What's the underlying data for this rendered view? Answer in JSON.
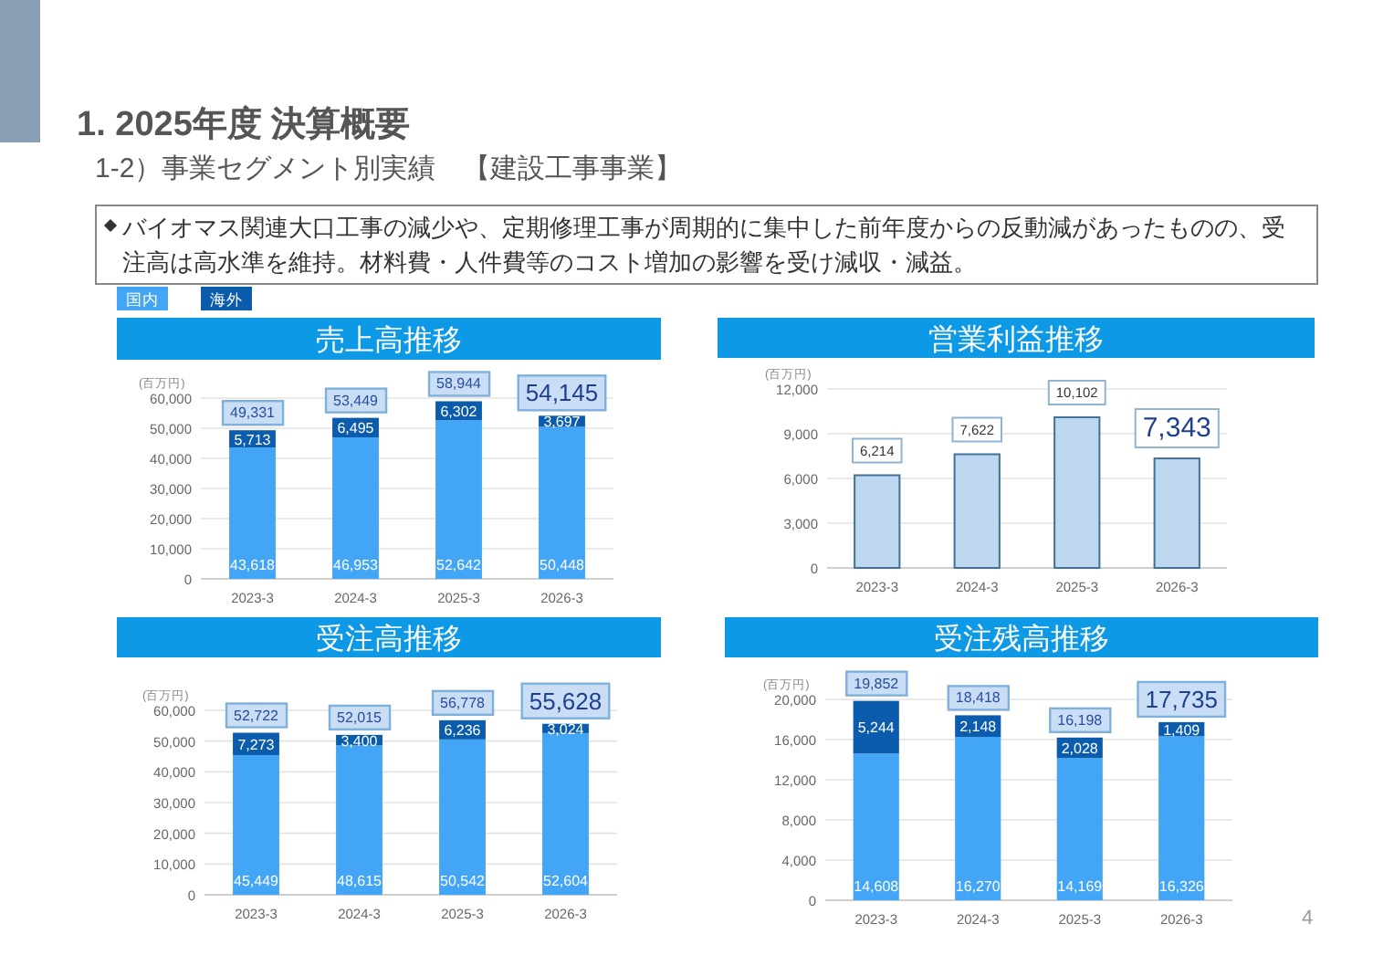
{
  "chart_data": [
    {
      "type": "other",
      "title": "1. 2025年度 決算概要",
      "subtitle": "1-2）事業セグメント別実績　【建設工事事業】",
      "annotations": [
        "バイオマス関連大口工事の減少や、定期修理工事が周期的に集中した前年度からの反動減があったものの、受注高は高水準を維持。材料費・人件費等のコスト増加の影響を受け減収・減益。",
        "4"
      ]
    },
    {
      "type": "bar",
      "title": "売上高推移",
      "ylabel": "(百万円)",
      "categories": [
        "2023-3",
        "2024-3",
        "2025-3",
        "2026-3"
      ],
      "stacked": true,
      "legend": "top left",
      "grid": "y",
      "ylim": [
        0,
        60000
      ],
      "yticks": [
        {
          "value": 0,
          "label": "0"
        },
        {
          "value": 10000,
          "label": "10,000"
        },
        {
          "value": 20000,
          "label": "20,000"
        },
        {
          "value": 30000,
          "label": "30,000"
        },
        {
          "value": 40000,
          "label": "40,000"
        },
        {
          "value": 50000,
          "label": "50,000"
        },
        {
          "value": 60000,
          "label": "60,000"
        }
      ],
      "series": [
        {
          "name": "国内",
          "color": "#42a5f5",
          "values": [
            43618,
            46953,
            52642,
            50448
          ],
          "value_labels": [
            "43,618",
            "46,953",
            "52,642",
            "50,448"
          ]
        },
        {
          "name": "海外",
          "color": "#0b5cad",
          "values": [
            5713,
            6495,
            6302,
            3697
          ],
          "value_labels": [
            "5,713",
            "6,495",
            "6,302",
            "3,697"
          ]
        }
      ],
      "totals": [
        "49,331",
        "53,449",
        "58,944",
        "54,145"
      ]
    },
    {
      "type": "bar",
      "title": "営業利益推移",
      "ylabel": "(百万円)",
      "categories": [
        "2023-3",
        "2024-3",
        "2025-3",
        "2026-3"
      ],
      "grid": "y",
      "color": "#bdd7ee",
      "ylim": [
        0,
        12000
      ],
      "yticks": [
        {
          "value": 0,
          "label": "0"
        },
        {
          "value": 3000,
          "label": "3,000"
        },
        {
          "value": 6000,
          "label": "6,000"
        },
        {
          "value": 9000,
          "label": "9,000"
        },
        {
          "value": 12000,
          "label": "12,000"
        }
      ],
      "values": [
        6214,
        7622,
        10102,
        7343
      ],
      "value_labels": [
        "6,214",
        "7,622",
        "10,102",
        "7,343"
      ]
    },
    {
      "type": "bar",
      "title": "受注高推移",
      "ylabel": "(百万円)",
      "categories": [
        "2023-3",
        "2024-3",
        "2025-3",
        "2026-3"
      ],
      "stacked": true,
      "grid": "y",
      "ylim": [
        0,
        60000
      ],
      "yticks": [
        {
          "value": 0,
          "label": "0"
        },
        {
          "value": 10000,
          "label": "10,000"
        },
        {
          "value": 20000,
          "label": "20,000"
        },
        {
          "value": 30000,
          "label": "30,000"
        },
        {
          "value": 40000,
          "label": "40,000"
        },
        {
          "value": 50000,
          "label": "50,000"
        },
        {
          "value": 60000,
          "label": "60,000"
        }
      ],
      "series": [
        {
          "color": "#42a5f5",
          "values": [
            45449,
            48615,
            50542,
            52604
          ],
          "value_labels": [
            "45,449",
            "48,615",
            "50,542",
            "52,604"
          ]
        },
        {
          "color": "#0b5cad",
          "values": [
            7273,
            3400,
            6236,
            3024
          ],
          "value_labels": [
            "7,273",
            "3,400",
            "6,236",
            "3,024"
          ]
        }
      ],
      "totals": [
        "52,722",
        "52,015",
        "56,778",
        "55,628"
      ]
    },
    {
      "type": "bar",
      "title": "受注残高推移",
      "ylabel": "(百万円)",
      "categories": [
        "2023-3",
        "2024-3",
        "2025-3",
        "2026-3"
      ],
      "stacked": true,
      "grid": "y",
      "ylim": [
        0,
        20000
      ],
      "yticks": [
        {
          "value": 0,
          "label": "0"
        },
        {
          "value": 4000,
          "label": "4,000"
        },
        {
          "value": 8000,
          "label": "8,000"
        },
        {
          "value": 12000,
          "label": "12,000"
        },
        {
          "value": 16000,
          "label": "16,000"
        },
        {
          "value": 20000,
          "label": "20,000"
        }
      ],
      "series": [
        {
          "color": "#42a5f5",
          "values": [
            14608,
            16270,
            14169,
            16326
          ],
          "value_labels": [
            "14,608",
            "16,270",
            "14,169",
            "16,326"
          ]
        },
        {
          "color": "#0b5cad",
          "values": [
            5244,
            2148,
            2028,
            1409
          ],
          "value_labels": [
            "5,244",
            "2,148",
            "2,028",
            "1,409"
          ]
        }
      ],
      "totals": [
        "19,852",
        "18,418",
        "16,198",
        "17,735"
      ]
    }
  ]
}
